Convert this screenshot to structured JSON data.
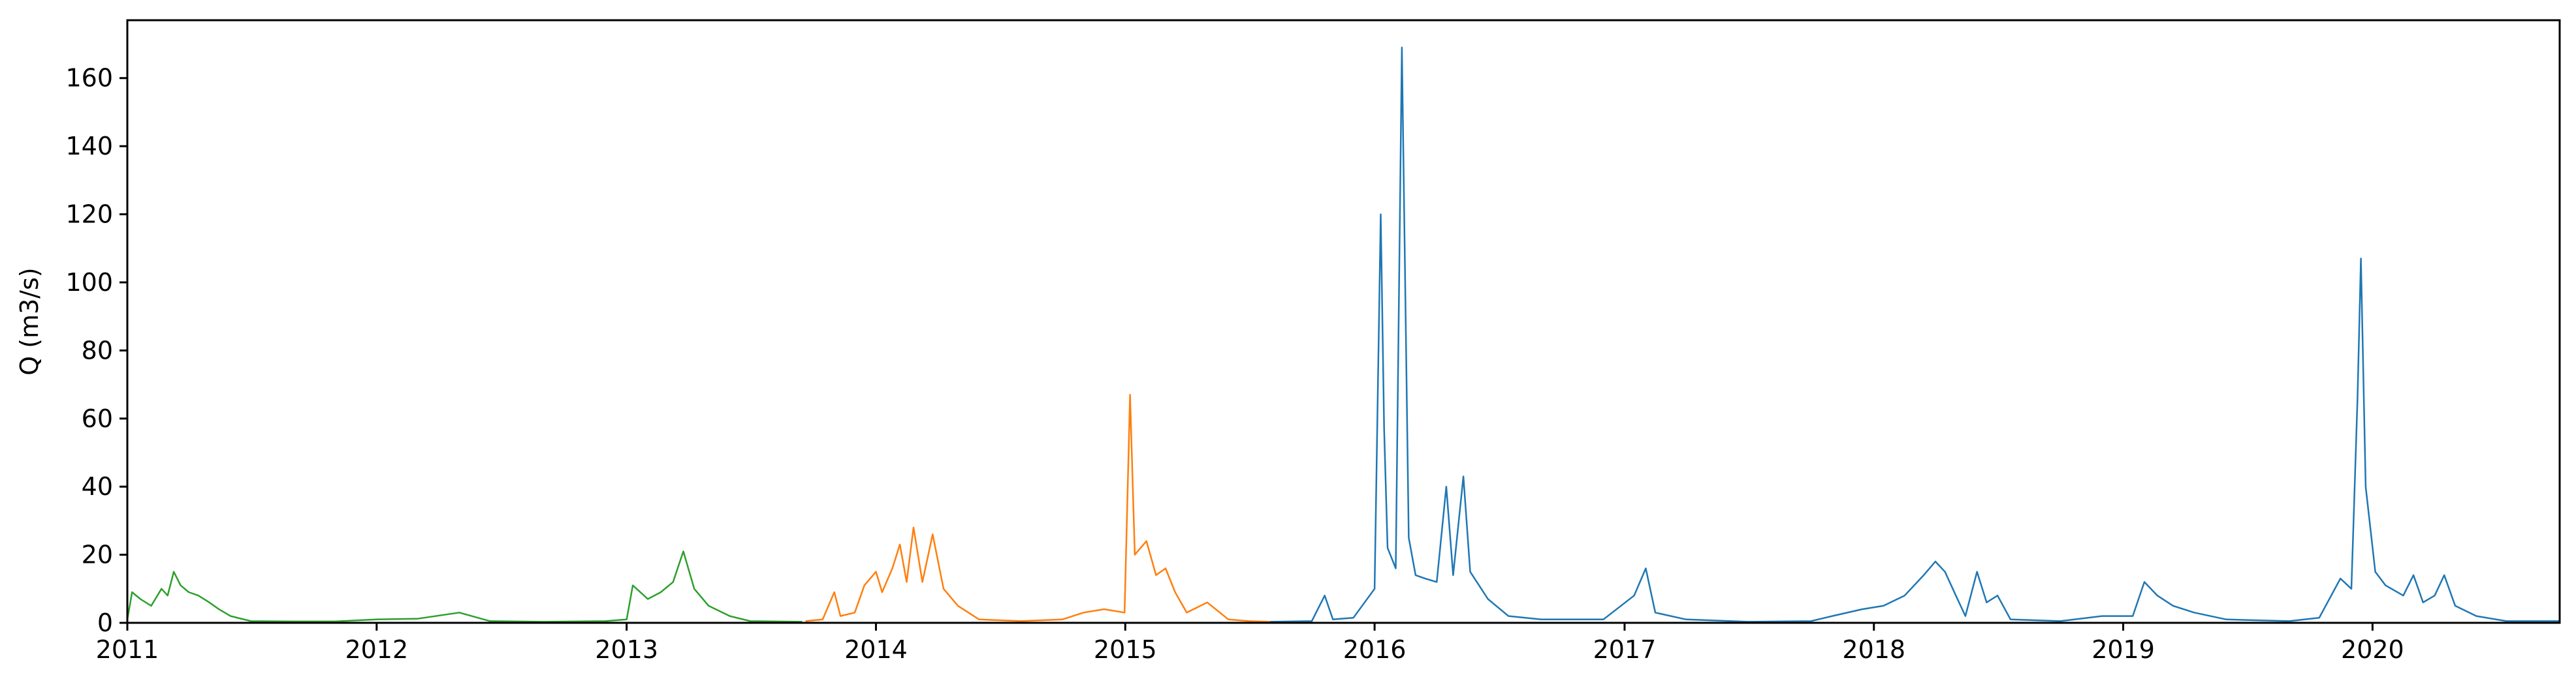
{
  "chart_data": {
    "type": "line",
    "title": "",
    "xlabel": "",
    "ylabel": "Q (m3/s)",
    "xlim": [
      "2011-01-01",
      "2020-10-01"
    ],
    "ylim": [
      0,
      177
    ],
    "grid": false,
    "legend": "none",
    "x_ticks": [
      "2011",
      "2012",
      "2013",
      "2014",
      "2015",
      "2016",
      "2017",
      "2018",
      "2019",
      "2020"
    ],
    "y_ticks": [
      0,
      20,
      40,
      60,
      80,
      100,
      120,
      140,
      160
    ],
    "series": [
      {
        "color": "#2ca02c",
        "points": [
          [
            "2011-01-01",
            1
          ],
          [
            "2011-01-08",
            9
          ],
          [
            "2011-01-20",
            7
          ],
          [
            "2011-02-05",
            5
          ],
          [
            "2011-02-20",
            10
          ],
          [
            "2011-03-01",
            8
          ],
          [
            "2011-03-10",
            15
          ],
          [
            "2011-03-20",
            11
          ],
          [
            "2011-04-01",
            9
          ],
          [
            "2011-04-15",
            8
          ],
          [
            "2011-05-01",
            6
          ],
          [
            "2011-05-15",
            4
          ],
          [
            "2011-06-01",
            2
          ],
          [
            "2011-07-01",
            0.5
          ],
          [
            "2011-09-01",
            0.4
          ],
          [
            "2011-11-01",
            0.4
          ],
          [
            "2012-01-01",
            1
          ],
          [
            "2012-03-01",
            1.2
          ],
          [
            "2012-05-01",
            3
          ],
          [
            "2012-06-15",
            0.5
          ],
          [
            "2012-09-01",
            0.3
          ],
          [
            "2012-12-01",
            0.5
          ],
          [
            "2013-01-01",
            1
          ],
          [
            "2013-01-10",
            11
          ],
          [
            "2013-02-01",
            7
          ],
          [
            "2013-02-20",
            9
          ],
          [
            "2013-03-10",
            12
          ],
          [
            "2013-03-25",
            21
          ],
          [
            "2013-04-10",
            10
          ],
          [
            "2013-05-01",
            5
          ],
          [
            "2013-06-01",
            2
          ],
          [
            "2013-07-01",
            0.5
          ],
          [
            "2013-09-15",
            0.3
          ]
        ]
      },
      {
        "color": "#ff7f0e",
        "points": [
          [
            "2013-09-20",
            0.5
          ],
          [
            "2013-10-15",
            1
          ],
          [
            "2013-11-01",
            9
          ],
          [
            "2013-11-10",
            2
          ],
          [
            "2013-12-01",
            3
          ],
          [
            "2013-12-15",
            11
          ],
          [
            "2014-01-01",
            15
          ],
          [
            "2014-01-10",
            9
          ],
          [
            "2014-01-25",
            16
          ],
          [
            "2014-02-05",
            23
          ],
          [
            "2014-02-15",
            12
          ],
          [
            "2014-02-25",
            28
          ],
          [
            "2014-03-10",
            12
          ],
          [
            "2014-03-25",
            26
          ],
          [
            "2014-04-10",
            10
          ],
          [
            "2014-05-01",
            5
          ],
          [
            "2014-06-01",
            1
          ],
          [
            "2014-08-01",
            0.5
          ],
          [
            "2014-10-01",
            1
          ],
          [
            "2014-11-01",
            3
          ],
          [
            "2014-12-01",
            4
          ],
          [
            "2014-12-31",
            3
          ],
          [
            "2015-01-08",
            67
          ],
          [
            "2015-01-15",
            20
          ],
          [
            "2015-02-01",
            24
          ],
          [
            "2015-02-15",
            14
          ],
          [
            "2015-03-01",
            16
          ],
          [
            "2015-03-15",
            9
          ],
          [
            "2015-04-01",
            3
          ],
          [
            "2015-05-01",
            6
          ],
          [
            "2015-06-01",
            1
          ],
          [
            "2015-07-01",
            0.5
          ],
          [
            "2015-08-01",
            0.3
          ]
        ]
      },
      {
        "color": "#1f77b4",
        "points": [
          [
            "2015-08-01",
            0.3
          ],
          [
            "2015-10-01",
            0.5
          ],
          [
            "2015-10-20",
            8
          ],
          [
            "2015-11-01",
            1
          ],
          [
            "2015-12-01",
            1.5
          ],
          [
            "2016-01-01",
            10
          ],
          [
            "2016-01-10",
            120
          ],
          [
            "2016-01-15",
            57
          ],
          [
            "2016-01-20",
            22
          ],
          [
            "2016-02-01",
            16
          ],
          [
            "2016-02-10",
            169
          ],
          [
            "2016-02-20",
            25
          ],
          [
            "2016-03-01",
            14
          ],
          [
            "2016-03-15",
            13
          ],
          [
            "2016-04-01",
            12
          ],
          [
            "2016-04-15",
            40
          ],
          [
            "2016-04-25",
            14
          ],
          [
            "2016-05-10",
            43
          ],
          [
            "2016-05-20",
            15
          ],
          [
            "2016-06-15",
            7
          ],
          [
            "2016-07-15",
            2
          ],
          [
            "2016-09-01",
            1
          ],
          [
            "2016-12-01",
            1
          ],
          [
            "2017-01-15",
            8
          ],
          [
            "2017-02-01",
            16
          ],
          [
            "2017-02-15",
            3
          ],
          [
            "2017-04-01",
            1
          ],
          [
            "2017-07-01",
            0.3
          ],
          [
            "2017-10-01",
            0.5
          ],
          [
            "2017-11-01",
            2
          ],
          [
            "2017-12-15",
            4
          ],
          [
            "2018-01-15",
            5
          ],
          [
            "2018-02-15",
            8
          ],
          [
            "2018-03-15",
            14
          ],
          [
            "2018-04-01",
            18
          ],
          [
            "2018-04-15",
            15
          ],
          [
            "2018-05-01",
            8
          ],
          [
            "2018-05-15",
            2
          ],
          [
            "2018-06-01",
            15
          ],
          [
            "2018-06-15",
            6
          ],
          [
            "2018-07-01",
            8
          ],
          [
            "2018-07-20",
            1
          ],
          [
            "2018-10-01",
            0.5
          ],
          [
            "2018-12-01",
            2
          ],
          [
            "2019-01-15",
            2
          ],
          [
            "2019-02-01",
            12
          ],
          [
            "2019-02-20",
            8
          ],
          [
            "2019-03-15",
            5
          ],
          [
            "2019-04-15",
            3
          ],
          [
            "2019-06-01",
            1
          ],
          [
            "2019-09-01",
            0.5
          ],
          [
            "2019-10-15",
            1.5
          ],
          [
            "2019-11-15",
            13
          ],
          [
            "2019-12-01",
            10
          ],
          [
            "2019-12-10",
            66
          ],
          [
            "2019-12-15",
            107
          ],
          [
            "2019-12-22",
            40
          ],
          [
            "2020-01-05",
            15
          ],
          [
            "2020-01-20",
            11
          ],
          [
            "2020-02-15",
            8
          ],
          [
            "2020-03-01",
            14
          ],
          [
            "2020-03-15",
            6
          ],
          [
            "2020-04-01",
            8
          ],
          [
            "2020-04-15",
            14
          ],
          [
            "2020-05-01",
            5
          ],
          [
            "2020-06-01",
            2
          ],
          [
            "2020-07-15",
            0.5
          ],
          [
            "2020-10-01",
            0.5
          ]
        ]
      }
    ]
  }
}
